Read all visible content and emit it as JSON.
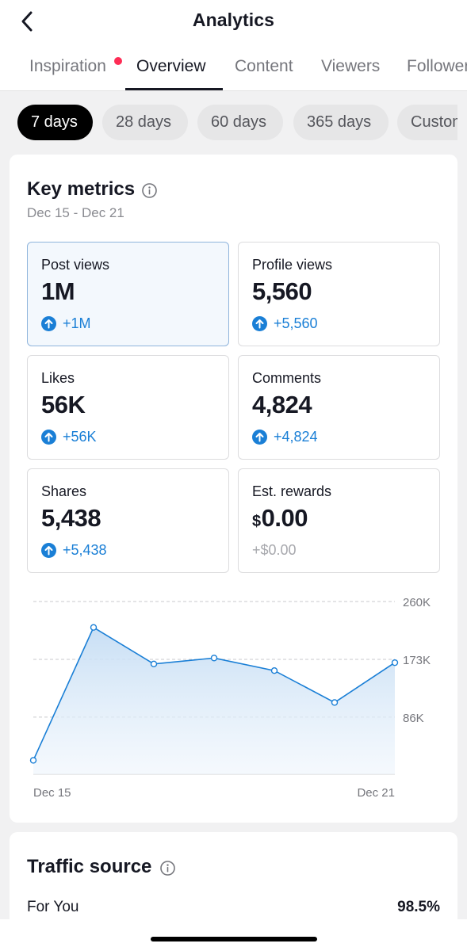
{
  "header": {
    "title": "Analytics"
  },
  "tabs": [
    {
      "label": "Inspiration",
      "active": false,
      "badge": true
    },
    {
      "label": "Overview",
      "active": true
    },
    {
      "label": "Content",
      "active": false
    },
    {
      "label": "Viewers",
      "active": false
    },
    {
      "label": "Followers",
      "active": false
    }
  ],
  "ranges": [
    {
      "label": "7 days",
      "active": true
    },
    {
      "label": "28 days",
      "active": false
    },
    {
      "label": "60 days",
      "active": false
    },
    {
      "label": "365 days",
      "active": false
    },
    {
      "label": "Custom",
      "active": false
    }
  ],
  "key_metrics": {
    "title": "Key metrics",
    "date_range": "Dec 15 - Dec 21",
    "items": [
      {
        "label": "Post views",
        "value": "1M",
        "delta": "+1M",
        "selected": true
      },
      {
        "label": "Profile views",
        "value": "5,560",
        "delta": "+5,560"
      },
      {
        "label": "Likes",
        "value": "56K",
        "delta": "+56K"
      },
      {
        "label": "Comments",
        "value": "4,824",
        "delta": "+4,824"
      },
      {
        "label": "Shares",
        "value": "5,438",
        "delta": "+5,438"
      },
      {
        "label": "Est. rewards",
        "currency": "$",
        "value": "0.00",
        "delta": "+$0.00",
        "muted": true
      }
    ]
  },
  "chart_data": {
    "type": "area",
    "x": [
      "Dec 15",
      "Dec 16",
      "Dec 17",
      "Dec 18",
      "Dec 19",
      "Dec 20",
      "Dec 21"
    ],
    "x_tick_labels": [
      "Dec 15",
      "Dec 21"
    ],
    "values": [
      21000,
      221000,
      166000,
      175000,
      156000,
      108000,
      168000
    ],
    "y_ticks": [
      86000,
      173000,
      260000
    ],
    "y_tick_labels": [
      "86K",
      "173K",
      "260K"
    ],
    "ylim": [
      0,
      260000
    ],
    "grid": true,
    "line_color": "#1a7fd6",
    "fill_color": "#cfe3f6"
  },
  "traffic_source": {
    "title": "Traffic source",
    "rows": [
      {
        "label": "For You",
        "value": "98.5%"
      }
    ]
  },
  "colors": {
    "accent": "#1a7fd6",
    "badge": "#fe2c55",
    "active_pill": "#000000"
  }
}
